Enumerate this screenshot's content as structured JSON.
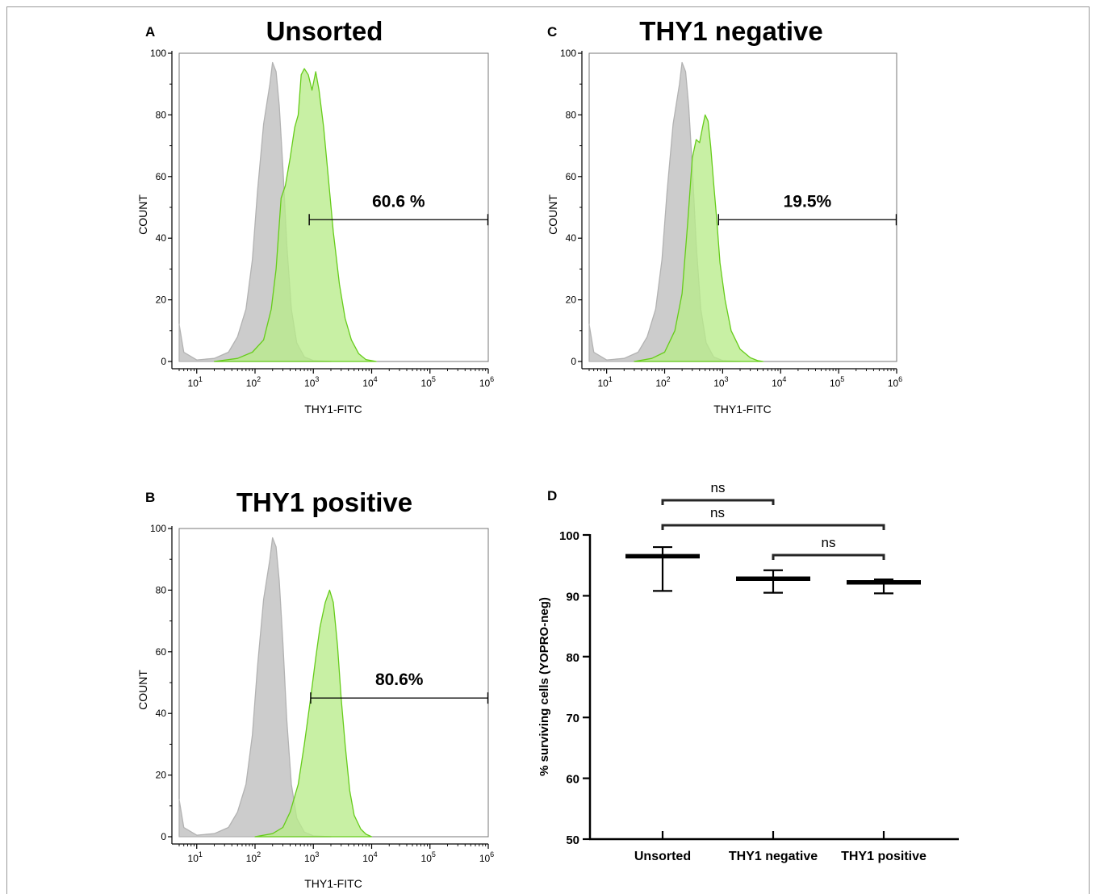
{
  "chart_data": [
    {
      "panel": "A",
      "type": "area",
      "title": "Unsorted",
      "xlabel": "THY1-FITC",
      "ylabel": "COUNT",
      "x_scale": "log",
      "xlim": [
        5,
        1000000
      ],
      "ylim": [
        0,
        100
      ],
      "yticks": [
        0,
        20,
        40,
        60,
        80,
        100
      ],
      "xticks": [
        {
          "base": "10",
          "exp": "1",
          "value": 10
        },
        {
          "base": "10",
          "exp": "2",
          "value": 100
        },
        {
          "base": "10",
          "exp": "3",
          "value": 1000
        },
        {
          "base": "10",
          "exp": "4",
          "value": 10000
        },
        {
          "base": "10",
          "exp": "5",
          "value": 100000
        },
        {
          "base": "10",
          "exp": "6",
          "value": 1000000
        }
      ],
      "gate": {
        "label": "60.6 %",
        "x_start": 850,
        "x_end": 1000000,
        "y": 46
      },
      "series": [
        {
          "role": "control",
          "color": "#cccccc",
          "stroke": "#b2b2b2",
          "points": [
            [
              5,
              12
            ],
            [
              6,
              3
            ],
            [
              10,
              0.5
            ],
            [
              20,
              1
            ],
            [
              35,
              3
            ],
            [
              50,
              8
            ],
            [
              70,
              17
            ],
            [
              90,
              33
            ],
            [
              110,
              55
            ],
            [
              140,
              77
            ],
            [
              180,
              90
            ],
            [
              200,
              97
            ],
            [
              230,
              94
            ],
            [
              260,
              83
            ],
            [
              300,
              63
            ],
            [
              350,
              38
            ],
            [
              420,
              17
            ],
            [
              520,
              6
            ],
            [
              700,
              1.5
            ],
            [
              1000,
              0.3
            ],
            [
              2000,
              0
            ]
          ]
        },
        {
          "role": "stained",
          "color": "#b8ec8a",
          "stroke": "#66cc1a",
          "points": [
            [
              20,
              0
            ],
            [
              50,
              1
            ],
            [
              90,
              3
            ],
            [
              140,
              7
            ],
            [
              190,
              17
            ],
            [
              230,
              30
            ],
            [
              280,
              53
            ],
            [
              330,
              57
            ],
            [
              400,
              66
            ],
            [
              480,
              76
            ],
            [
              550,
              80
            ],
            [
              620,
              93
            ],
            [
              700,
              95
            ],
            [
              820,
              93
            ],
            [
              950,
              88
            ],
            [
              1100,
              94
            ],
            [
              1250,
              88
            ],
            [
              1500,
              76
            ],
            [
              1800,
              60
            ],
            [
              2200,
              42
            ],
            [
              2800,
              25
            ],
            [
              3500,
              14
            ],
            [
              4500,
              7
            ],
            [
              6000,
              2.5
            ],
            [
              8000,
              0.6
            ],
            [
              12000,
              0
            ]
          ]
        }
      ]
    },
    {
      "panel": "B",
      "type": "area",
      "title": "THY1 positive",
      "xlabel": "THY1-FITC",
      "ylabel": "COUNT",
      "x_scale": "log",
      "xlim": [
        5,
        1000000
      ],
      "ylim": [
        0,
        100
      ],
      "yticks": [
        0,
        20,
        40,
        60,
        80,
        100
      ],
      "xticks": [
        {
          "base": "10",
          "exp": "1",
          "value": 10
        },
        {
          "base": "10",
          "exp": "2",
          "value": 100
        },
        {
          "base": "10",
          "exp": "3",
          "value": 1000
        },
        {
          "base": "10",
          "exp": "4",
          "value": 10000
        },
        {
          "base": "10",
          "exp": "5",
          "value": 100000
        },
        {
          "base": "10",
          "exp": "6",
          "value": 1000000
        }
      ],
      "gate": {
        "label": "80.6%",
        "x_start": 900,
        "x_end": 1000000,
        "y": 45
      },
      "series": [
        {
          "role": "control",
          "color": "#cccccc",
          "stroke": "#b2b2b2",
          "points": [
            [
              5,
              12
            ],
            [
              6,
              3
            ],
            [
              10,
              0.5
            ],
            [
              20,
              1
            ],
            [
              35,
              3
            ],
            [
              50,
              8
            ],
            [
              70,
              17
            ],
            [
              90,
              33
            ],
            [
              110,
              55
            ],
            [
              140,
              77
            ],
            [
              180,
              90
            ],
            [
              200,
              97
            ],
            [
              230,
              94
            ],
            [
              260,
              83
            ],
            [
              300,
              63
            ],
            [
              350,
              38
            ],
            [
              420,
              17
            ],
            [
              520,
              6
            ],
            [
              700,
              1.5
            ],
            [
              1000,
              0.3
            ],
            [
              2000,
              0
            ]
          ]
        },
        {
          "role": "stained",
          "color": "#b8ec8a",
          "stroke": "#66cc1a",
          "points": [
            [
              100,
              0
            ],
            [
              200,
              1
            ],
            [
              300,
              3
            ],
            [
              400,
              8
            ],
            [
              550,
              17
            ],
            [
              700,
              30
            ],
            [
              900,
              45
            ],
            [
              1100,
              58
            ],
            [
              1300,
              68
            ],
            [
              1600,
              76
            ],
            [
              1900,
              80
            ],
            [
              2200,
              76
            ],
            [
              2600,
              62
            ],
            [
              3000,
              45
            ],
            [
              3500,
              30
            ],
            [
              4200,
              15
            ],
            [
              5000,
              7
            ],
            [
              6500,
              2.5
            ],
            [
              8000,
              0.8
            ],
            [
              10000,
              0
            ]
          ]
        }
      ]
    },
    {
      "panel": "C",
      "type": "area",
      "title": "THY1 negative",
      "xlabel": "THY1-FITC",
      "ylabel": "COUNT",
      "x_scale": "log",
      "xlim": [
        5,
        1000000
      ],
      "ylim": [
        0,
        100
      ],
      "yticks": [
        0,
        20,
        40,
        60,
        80,
        100
      ],
      "xticks": [
        {
          "base": "10",
          "exp": "1",
          "value": 10
        },
        {
          "base": "10",
          "exp": "2",
          "value": 100
        },
        {
          "base": "10",
          "exp": "3",
          "value": 1000
        },
        {
          "base": "10",
          "exp": "4",
          "value": 10000
        },
        {
          "base": "10",
          "exp": "5",
          "value": 100000
        },
        {
          "base": "10",
          "exp": "6",
          "value": 1000000
        }
      ],
      "gate": {
        "label": "19.5%",
        "x_start": 850,
        "x_end": 1000000,
        "y": 46
      },
      "series": [
        {
          "role": "control",
          "color": "#cccccc",
          "stroke": "#b2b2b2",
          "points": [
            [
              5,
              12
            ],
            [
              6,
              3
            ],
            [
              10,
              0.5
            ],
            [
              20,
              1
            ],
            [
              35,
              3
            ],
            [
              50,
              8
            ],
            [
              70,
              17
            ],
            [
              90,
              33
            ],
            [
              110,
              55
            ],
            [
              140,
              77
            ],
            [
              180,
              90
            ],
            [
              200,
              97
            ],
            [
              230,
              94
            ],
            [
              260,
              83
            ],
            [
              300,
              63
            ],
            [
              350,
              38
            ],
            [
              420,
              17
            ],
            [
              520,
              6
            ],
            [
              700,
              1.5
            ],
            [
              1000,
              0.3
            ],
            [
              2000,
              0
            ]
          ]
        },
        {
          "role": "stained",
          "color": "#b8ec8a",
          "stroke": "#66cc1a",
          "points": [
            [
              30,
              0
            ],
            [
              60,
              1
            ],
            [
              100,
              3
            ],
            [
              150,
              10
            ],
            [
              200,
              22
            ],
            [
              250,
              45
            ],
            [
              300,
              66
            ],
            [
              350,
              72
            ],
            [
              400,
              71
            ],
            [
              450,
              76
            ],
            [
              500,
              80
            ],
            [
              560,
              78
            ],
            [
              620,
              70
            ],
            [
              700,
              58
            ],
            [
              800,
              45
            ],
            [
              900,
              32
            ],
            [
              1100,
              20
            ],
            [
              1400,
              10
            ],
            [
              2000,
              4
            ],
            [
              3000,
              1.2
            ],
            [
              4000,
              0.3
            ],
            [
              5000,
              0
            ]
          ]
        }
      ]
    },
    {
      "panel": "D",
      "type": "scatter",
      "ylabel": "% surviving cells (YOPRO-neg)",
      "ylim": [
        50,
        100
      ],
      "yticks": [
        50,
        60,
        70,
        80,
        90,
        100
      ],
      "categories": [
        "Unsorted",
        "THY1 negative",
        "THY1 positive"
      ],
      "mean": [
        96.5,
        92.8,
        92.2
      ],
      "error_upper": [
        98.0,
        94.2,
        92.7
      ],
      "error_lower": [
        90.8,
        90.5,
        90.4
      ],
      "significance": [
        {
          "from": 0,
          "to": 1,
          "label": "ns"
        },
        {
          "from": 0,
          "to": 2,
          "label": "ns"
        },
        {
          "from": 1,
          "to": 2,
          "label": "ns"
        }
      ]
    }
  ]
}
